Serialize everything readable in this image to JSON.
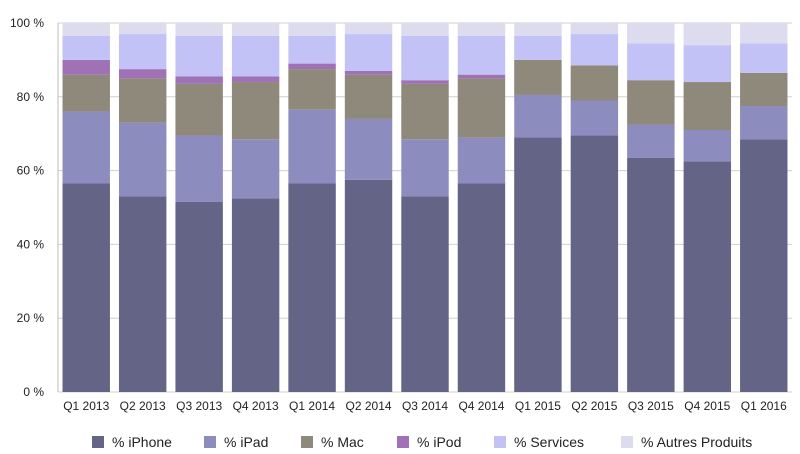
{
  "chart_data": {
    "type": "bar",
    "stacked": true,
    "title": "",
    "xlabel": "",
    "ylabel": "",
    "ylim": [
      0,
      100
    ],
    "y_ticks": [
      0,
      20,
      40,
      60,
      80,
      100
    ],
    "y_tick_labels": [
      "0 %",
      "20 %",
      "40 %",
      "60 %",
      "80 %",
      "100 %"
    ],
    "grid": true,
    "legend_position": "bottom",
    "categories": [
      "Q1 2013",
      "Q2 2013",
      "Q3 2013",
      "Q4 2013",
      "Q1 2014",
      "Q2 2014",
      "Q3 2014",
      "Q4 2014",
      "Q1 2015",
      "Q2 2015",
      "Q3 2015",
      "Q4 2015",
      "Q1 2016"
    ],
    "series": [
      {
        "name": "% iPhone",
        "color": "#646487",
        "values": [
          56.5,
          53.0,
          51.5,
          52.5,
          56.5,
          57.5,
          53.0,
          56.5,
          69.0,
          69.5,
          63.5,
          62.5,
          68.5
        ]
      },
      {
        "name": "% iPad",
        "color": "#8c8cbe",
        "values": [
          19.5,
          20.0,
          18.0,
          16.0,
          20.0,
          16.5,
          15.5,
          12.5,
          11.5,
          9.5,
          9.0,
          8.5,
          9.0
        ]
      },
      {
        "name": "% Mac",
        "color": "#8f897c",
        "values": [
          10.0,
          12.0,
          14.0,
          15.5,
          11.0,
          12.0,
          15.0,
          16.0,
          9.5,
          9.5,
          12.0,
          13.0,
          9.0
        ]
      },
      {
        "name": "% iPod",
        "color": "#a071b5",
        "values": [
          4.0,
          2.5,
          2.0,
          1.5,
          1.5,
          1.0,
          1.0,
          1.0,
          0.0,
          0.0,
          0.0,
          0.0,
          0.0
        ]
      },
      {
        "name": "% Services",
        "color": "#c2c2f7",
        "values": [
          6.5,
          9.5,
          11.0,
          11.0,
          7.5,
          10.0,
          12.0,
          10.5,
          6.5,
          8.5,
          10.0,
          10.0,
          8.0
        ]
      },
      {
        "name": "% Autres Produits",
        "color": "#dcdcee",
        "values": [
          3.5,
          3.0,
          3.5,
          3.5,
          3.5,
          3.0,
          3.5,
          3.5,
          3.5,
          3.0,
          5.5,
          6.0,
          5.5
        ]
      }
    ]
  }
}
